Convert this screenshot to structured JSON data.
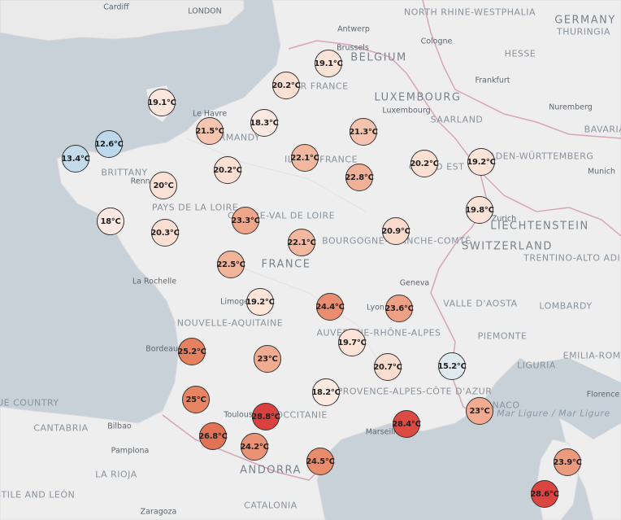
{
  "labels": {
    "countries": [
      "BELGIUM",
      "GERMANY",
      "LUXEMBOURG",
      "SWITZERLAND",
      "LIECHTENSTEIN",
      "FRANCE",
      "ANDORRA"
    ],
    "regions": [
      "NORTH RHINE-WESTPHALIA",
      "THURINGIA",
      "HESSE",
      "SAARLAND",
      "BADEN-WÜRTTEMBERG",
      "BAVARIA",
      "UPPER FRANCE",
      "NORMANDY",
      "GRAND EST",
      "ILE-DE-FRANCE",
      "BRITTANY",
      "PAYS DE LA LOIRE",
      "CENTRE-VAL DE LOIRE",
      "BOURGOGNE-FRANCHE-COMTÉ",
      "NOUVELLE-AQUITAINE",
      "AUVERGNE-RHÔNE-ALPES",
      "OCCITANIE",
      "PROVENCE-ALPES-CÔTE D'AZUR",
      "VALLE D'AOSTA",
      "PIEMONTE",
      "LOMBARDY",
      "LIGURIA",
      "EMILIA-ROMAGNA",
      "TRENTINO-ALTO ADIGE/SÜDTIROL",
      "CANTABRIA",
      "LA RIOJA",
      "CASTILE AND LEÓN",
      "CATALONIA",
      "BASQUE COUNTRY",
      "MONACO"
    ],
    "cities": [
      "Cardiff",
      "LONDON",
      "Antwerp",
      "Brussels",
      "Cologne",
      "Frankfurt",
      "Luxembourg",
      "Nuremberg",
      "Munich",
      "Le Havre",
      "Rennes",
      "Zurich",
      "La Rochelle",
      "Limoges",
      "Lyon",
      "Geneva",
      "Bordeaux",
      "Toulouse",
      "Marseille",
      "Bilbao",
      "Pamplona",
      "Zaragoza",
      "Florence"
    ],
    "seas": [
      "Mar Ligure / Mar Ligure"
    ]
  },
  "markers": [
    {
      "temp": "19.1°C",
      "value": 19.1,
      "color": "#fbe3d8"
    },
    {
      "temp": "20.2°C",
      "value": 20.2,
      "color": "#fbe0d3"
    },
    {
      "temp": "19.1°C",
      "value": 19.1,
      "color": "#fce6dc"
    },
    {
      "temp": "18.3°C",
      "value": 18.3,
      "color": "#fbe9e1"
    },
    {
      "temp": "21.5°C",
      "value": 21.5,
      "color": "#f6c5b0"
    },
    {
      "temp": "12.6°C",
      "value": 12.6,
      "color": "#bcd8ea"
    },
    {
      "temp": "13.4°C",
      "value": 13.4,
      "color": "#c3dbeb"
    },
    {
      "temp": "21.3°C",
      "value": 21.3,
      "color": "#f5c3ad"
    },
    {
      "temp": "22.1°C",
      "value": 22.1,
      "color": "#f3b69e"
    },
    {
      "temp": "20.2°C",
      "value": 20.2,
      "color": "#fbe0d3"
    },
    {
      "temp": "20.2°C",
      "value": 20.2,
      "color": "#fbe0d3"
    },
    {
      "temp": "19.2°C",
      "value": 19.2,
      "color": "#fce4d9"
    },
    {
      "temp": "20°C",
      "value": 20.0,
      "color": "#fbe1d5"
    },
    {
      "temp": "22.8°C",
      "value": 22.8,
      "color": "#f1b098"
    },
    {
      "temp": "18°C",
      "value": 18.0,
      "color": "#fceae2"
    },
    {
      "temp": "20.3°C",
      "value": 20.3,
      "color": "#fbdfd2"
    },
    {
      "temp": "23.3°C",
      "value": 23.3,
      "color": "#efa68b"
    },
    {
      "temp": "22.1°C",
      "value": 22.1,
      "color": "#f3b69e"
    },
    {
      "temp": "20.9°C",
      "value": 20.9,
      "color": "#f9dacc"
    },
    {
      "temp": "19.8°C",
      "value": 19.8,
      "color": "#fbe2d6"
    },
    {
      "temp": "22.5°C",
      "value": 22.5,
      "color": "#f2b39b"
    },
    {
      "temp": "19.2°C",
      "value": 19.2,
      "color": "#fce4d9"
    },
    {
      "temp": "24.4°C",
      "value": 24.4,
      "color": "#e98d70"
    },
    {
      "temp": "23.6°C",
      "value": 23.6,
      "color": "#eea086"
    },
    {
      "temp": "19.7°C",
      "value": 19.7,
      "color": "#fbe3d7"
    },
    {
      "temp": "25.2°C",
      "value": 25.2,
      "color": "#e6805f"
    },
    {
      "temp": "23°C",
      "value": 23.0,
      "color": "#f0ab91"
    },
    {
      "temp": "20.7°C",
      "value": 20.7,
      "color": "#faddcf"
    },
    {
      "temp": "15.2°C",
      "value": 15.2,
      "color": "#dfe9f0"
    },
    {
      "temp": "18.2°C",
      "value": 18.2,
      "color": "#fceae1"
    },
    {
      "temp": "25°C",
      "value": 25.0,
      "color": "#e78463"
    },
    {
      "temp": "28.8°C",
      "value": 28.8,
      "color": "#d9403f"
    },
    {
      "temp": "23°C",
      "value": 23.0,
      "color": "#f0ab91"
    },
    {
      "temp": "28.4°C",
      "value": 28.4,
      "color": "#db4a43"
    },
    {
      "temp": "26.8°C",
      "value": 26.8,
      "color": "#e17254"
    },
    {
      "temp": "24.2°C",
      "value": 24.2,
      "color": "#ea9275"
    },
    {
      "temp": "24.5°C",
      "value": 24.5,
      "color": "#e98b6d"
    },
    {
      "temp": "23.9°C",
      "value": 23.9,
      "color": "#ec9a7e"
    },
    {
      "temp": "28.6°C",
      "value": 28.6,
      "color": "#da4541"
    }
  ]
}
